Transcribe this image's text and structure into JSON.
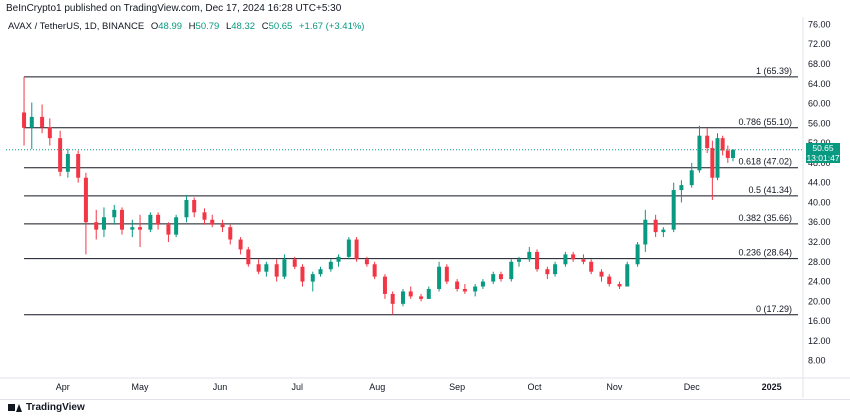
{
  "header": {
    "published": "BeInCrypto1 published on TradingView.com, Dec 17, 2024 16:28 UTC+5:30"
  },
  "legend": {
    "symbol": "AVAX / TetherUS, 1D, BINANCE",
    "o_label": "O",
    "o_value": "48.99",
    "h_label": "H",
    "h_value": "50.79",
    "l_label": "L",
    "l_value": "48.32",
    "c_label": "C",
    "c_value": "50.65",
    "change": "+1.67 (+3.41%)"
  },
  "price_tag": {
    "price": "50.65",
    "countdown": "13:01:47"
  },
  "footer": {
    "brand": "TradingView"
  },
  "colors": {
    "up": "#089981",
    "down": "#f23645",
    "fib_line": "#131722",
    "price_line": "#089981"
  },
  "chart_data": {
    "type": "candlestick",
    "ylim": [
      4.5,
      77.5
    ],
    "y_ticks": [
      "76.00",
      "72.00",
      "68.00",
      "64.00",
      "60.00",
      "56.00",
      "52.00",
      "48.00",
      "44.00",
      "40.00",
      "36.00",
      "32.00",
      "28.00",
      "24.00",
      "20.00",
      "16.00",
      "12.00",
      "8.00"
    ],
    "x_ticks": [
      "Apr",
      "May",
      "Jun",
      "Jul",
      "Aug",
      "Sep",
      "Oct",
      "Nov",
      "Dec",
      "2025"
    ],
    "fib_levels": [
      {
        "label": "1 (65.39)",
        "value": 65.39
      },
      {
        "label": "0.786 (55.10)",
        "value": 55.1
      },
      {
        "label": "0.618 (47.02)",
        "value": 47.02
      },
      {
        "label": "0.5 (41.34)",
        "value": 41.34
      },
      {
        "label": "0.382 (35.66)",
        "value": 35.66
      },
      {
        "label": "0.236 (28.64)",
        "value": 28.64
      },
      {
        "label": "0 (17.29)",
        "value": 17.29
      }
    ],
    "last_price": 50.65,
    "candles": [
      {
        "date": "2024-03-17",
        "o": 58.2,
        "h": 65.4,
        "l": 51.5,
        "c": 55.1
      },
      {
        "date": "2024-03-20",
        "o": 55.1,
        "h": 60.2,
        "l": 50.8,
        "c": 57.3
      },
      {
        "date": "2024-03-24",
        "o": 57.3,
        "h": 59.8,
        "l": 54.0,
        "c": 55.2
      },
      {
        "date": "2024-03-27",
        "o": 55.2,
        "h": 57.0,
        "l": 51.5,
        "c": 53.0
      },
      {
        "date": "2024-03-31",
        "o": 53.0,
        "h": 54.5,
        "l": 45.3,
        "c": 46.2
      },
      {
        "date": "2024-04-03",
        "o": 46.2,
        "h": 50.9,
        "l": 45.0,
        "c": 49.8
      },
      {
        "date": "2024-04-07",
        "o": 49.8,
        "h": 50.5,
        "l": 44.0,
        "c": 45.0
      },
      {
        "date": "2024-04-10",
        "o": 45.0,
        "h": 46.0,
        "l": 29.5,
        "c": 36.0
      },
      {
        "date": "2024-04-14",
        "o": 36.0,
        "h": 38.5,
        "l": 32.5,
        "c": 34.5
      },
      {
        "date": "2024-04-17",
        "o": 34.5,
        "h": 39.0,
        "l": 33.0,
        "c": 37.0
      },
      {
        "date": "2024-04-21",
        "o": 37.0,
        "h": 39.5,
        "l": 35.5,
        "c": 38.5
      },
      {
        "date": "2024-04-24",
        "o": 38.5,
        "h": 39.0,
        "l": 33.5,
        "c": 34.5
      },
      {
        "date": "2024-04-28",
        "o": 34.5,
        "h": 36.5,
        "l": 33.0,
        "c": 35.0
      },
      {
        "date": "2024-05-01",
        "o": 35.0,
        "h": 37.5,
        "l": 31.0,
        "c": 34.5
      },
      {
        "date": "2024-05-05",
        "o": 34.5,
        "h": 38.0,
        "l": 34.0,
        "c": 37.5
      },
      {
        "date": "2024-05-08",
        "o": 37.5,
        "h": 38.0,
        "l": 34.5,
        "c": 35.5
      },
      {
        "date": "2024-05-12",
        "o": 35.5,
        "h": 36.0,
        "l": 32.0,
        "c": 33.5
      },
      {
        "date": "2024-05-15",
        "o": 33.5,
        "h": 37.5,
        "l": 33.0,
        "c": 37.0
      },
      {
        "date": "2024-05-19",
        "o": 37.0,
        "h": 41.5,
        "l": 36.0,
        "c": 40.5
      },
      {
        "date": "2024-05-22",
        "o": 40.5,
        "h": 41.0,
        "l": 37.0,
        "c": 38.0
      },
      {
        "date": "2024-05-26",
        "o": 38.0,
        "h": 38.8,
        "l": 35.5,
        "c": 36.5
      },
      {
        "date": "2024-05-29",
        "o": 36.5,
        "h": 37.5,
        "l": 35.0,
        "c": 35.5
      },
      {
        "date": "2024-06-02",
        "o": 35.5,
        "h": 36.5,
        "l": 34.0,
        "c": 35.0
      },
      {
        "date": "2024-06-05",
        "o": 35.0,
        "h": 35.5,
        "l": 31.5,
        "c": 32.5
      },
      {
        "date": "2024-06-09",
        "o": 32.5,
        "h": 33.0,
        "l": 29.5,
        "c": 30.5
      },
      {
        "date": "2024-06-12",
        "o": 30.5,
        "h": 31.0,
        "l": 27.0,
        "c": 27.5
      },
      {
        "date": "2024-06-16",
        "o": 27.5,
        "h": 28.5,
        "l": 25.5,
        "c": 26.0
      },
      {
        "date": "2024-06-19",
        "o": 26.0,
        "h": 28.0,
        "l": 25.0,
        "c": 27.5
      },
      {
        "date": "2024-06-23",
        "o": 27.5,
        "h": 28.5,
        "l": 24.0,
        "c": 25.0
      },
      {
        "date": "2024-06-26",
        "o": 25.0,
        "h": 29.5,
        "l": 24.5,
        "c": 28.5
      },
      {
        "date": "2024-06-30",
        "o": 28.5,
        "h": 29.0,
        "l": 26.5,
        "c": 27.0
      },
      {
        "date": "2024-07-03",
        "o": 27.0,
        "h": 27.5,
        "l": 23.0,
        "c": 24.0
      },
      {
        "date": "2024-07-07",
        "o": 24.0,
        "h": 26.0,
        "l": 22.0,
        "c": 25.5
      },
      {
        "date": "2024-07-10",
        "o": 25.5,
        "h": 27.0,
        "l": 25.0,
        "c": 26.5
      },
      {
        "date": "2024-07-14",
        "o": 26.5,
        "h": 28.5,
        "l": 26.0,
        "c": 28.0
      },
      {
        "date": "2024-07-17",
        "o": 28.0,
        "h": 29.5,
        "l": 27.0,
        "c": 29.0
      },
      {
        "date": "2024-07-21",
        "o": 29.0,
        "h": 33.0,
        "l": 28.5,
        "c": 32.5
      },
      {
        "date": "2024-07-24",
        "o": 32.5,
        "h": 33.0,
        "l": 28.0,
        "c": 28.5
      },
      {
        "date": "2024-07-28",
        "o": 28.5,
        "h": 29.0,
        "l": 27.0,
        "c": 27.5
      },
      {
        "date": "2024-07-31",
        "o": 27.5,
        "h": 28.0,
        "l": 24.5,
        "c": 25.0
      },
      {
        "date": "2024-08-04",
        "o": 25.0,
        "h": 25.5,
        "l": 20.5,
        "c": 21.5
      },
      {
        "date": "2024-08-07",
        "o": 21.5,
        "h": 22.0,
        "l": 17.3,
        "c": 19.5
      },
      {
        "date": "2024-08-11",
        "o": 19.5,
        "h": 22.5,
        "l": 19.0,
        "c": 22.0
      },
      {
        "date": "2024-08-14",
        "o": 22.0,
        "h": 23.0,
        "l": 20.5,
        "c": 21.0
      },
      {
        "date": "2024-08-18",
        "o": 21.0,
        "h": 21.5,
        "l": 20.0,
        "c": 20.5
      },
      {
        "date": "2024-08-21",
        "o": 20.5,
        "h": 23.0,
        "l": 20.5,
        "c": 22.5
      },
      {
        "date": "2024-08-25",
        "o": 22.5,
        "h": 28.0,
        "l": 22.0,
        "c": 27.0
      },
      {
        "date": "2024-08-28",
        "o": 27.0,
        "h": 27.5,
        "l": 23.5,
        "c": 24.0
      },
      {
        "date": "2024-09-01",
        "o": 24.0,
        "h": 24.5,
        "l": 22.0,
        "c": 22.5
      },
      {
        "date": "2024-09-04",
        "o": 22.5,
        "h": 23.5,
        "l": 21.5,
        "c": 22.0
      },
      {
        "date": "2024-09-08",
        "o": 22.0,
        "h": 23.5,
        "l": 21.0,
        "c": 23.0
      },
      {
        "date": "2024-09-11",
        "o": 23.0,
        "h": 24.5,
        "l": 22.5,
        "c": 24.0
      },
      {
        "date": "2024-09-15",
        "o": 24.0,
        "h": 26.0,
        "l": 23.5,
        "c": 25.5
      },
      {
        "date": "2024-09-18",
        "o": 25.5,
        "h": 26.0,
        "l": 24.0,
        "c": 24.5
      },
      {
        "date": "2024-09-22",
        "o": 24.5,
        "h": 28.5,
        "l": 24.0,
        "c": 28.0
      },
      {
        "date": "2024-09-25",
        "o": 28.0,
        "h": 29.0,
        "l": 27.0,
        "c": 28.5
      },
      {
        "date": "2024-09-29",
        "o": 28.5,
        "h": 31.0,
        "l": 28.0,
        "c": 30.0
      },
      {
        "date": "2024-10-02",
        "o": 30.0,
        "h": 30.5,
        "l": 26.0,
        "c": 26.5
      },
      {
        "date": "2024-10-06",
        "o": 26.5,
        "h": 27.0,
        "l": 24.5,
        "c": 25.5
      },
      {
        "date": "2024-10-09",
        "o": 25.5,
        "h": 28.0,
        "l": 25.0,
        "c": 27.5
      },
      {
        "date": "2024-10-13",
        "o": 27.5,
        "h": 30.0,
        "l": 27.0,
        "c": 29.5
      },
      {
        "date": "2024-10-16",
        "o": 29.5,
        "h": 30.0,
        "l": 28.0,
        "c": 28.5
      },
      {
        "date": "2024-10-20",
        "o": 28.5,
        "h": 29.5,
        "l": 27.5,
        "c": 28.0
      },
      {
        "date": "2024-10-23",
        "o": 28.0,
        "h": 28.5,
        "l": 25.5,
        "c": 26.0
      },
      {
        "date": "2024-10-27",
        "o": 26.0,
        "h": 26.5,
        "l": 24.0,
        "c": 25.0
      },
      {
        "date": "2024-10-30",
        "o": 25.0,
        "h": 25.5,
        "l": 23.0,
        "c": 23.5
      },
      {
        "date": "2024-11-03",
        "o": 23.5,
        "h": 24.0,
        "l": 22.5,
        "c": 23.0
      },
      {
        "date": "2024-11-06",
        "o": 23.0,
        "h": 28.0,
        "l": 23.0,
        "c": 27.5
      },
      {
        "date": "2024-11-10",
        "o": 27.5,
        "h": 32.0,
        "l": 27.0,
        "c": 31.5
      },
      {
        "date": "2024-11-13",
        "o": 31.5,
        "h": 38.5,
        "l": 30.0,
        "c": 36.5
      },
      {
        "date": "2024-11-17",
        "o": 36.5,
        "h": 37.5,
        "l": 33.0,
        "c": 34.0
      },
      {
        "date": "2024-11-20",
        "o": 34.0,
        "h": 35.0,
        "l": 33.0,
        "c": 34.5
      },
      {
        "date": "2024-11-24",
        "o": 34.5,
        "h": 44.0,
        "l": 34.0,
        "c": 42.5
      },
      {
        "date": "2024-11-27",
        "o": 42.5,
        "h": 44.5,
        "l": 40.0,
        "c": 43.5
      },
      {
        "date": "2024-12-01",
        "o": 43.5,
        "h": 48.0,
        "l": 43.0,
        "c": 46.5
      },
      {
        "date": "2024-12-04",
        "o": 46.5,
        "h": 55.5,
        "l": 46.0,
        "c": 53.5
      },
      {
        "date": "2024-12-07",
        "o": 53.5,
        "h": 55.0,
        "l": 50.0,
        "c": 51.0
      },
      {
        "date": "2024-12-09",
        "o": 51.0,
        "h": 52.5,
        "l": 40.5,
        "c": 45.0
      },
      {
        "date": "2024-12-11",
        "o": 45.0,
        "h": 54.0,
        "l": 44.5,
        "c": 53.0
      },
      {
        "date": "2024-12-13",
        "o": 53.0,
        "h": 53.5,
        "l": 49.5,
        "c": 50.5
      },
      {
        "date": "2024-12-15",
        "o": 50.5,
        "h": 51.5,
        "l": 48.0,
        "c": 49.0
      },
      {
        "date": "2024-12-17",
        "o": 48.99,
        "h": 50.79,
        "l": 48.32,
        "c": 50.65
      }
    ]
  }
}
